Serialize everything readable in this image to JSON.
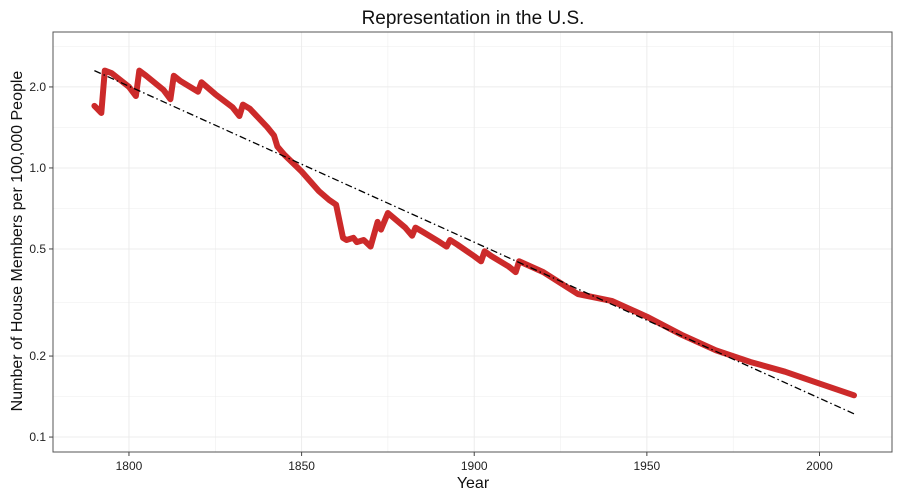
{
  "chart_data": {
    "type": "line",
    "title": "Representation in the U.S.",
    "xlabel": "Year",
    "ylabel": "Number of House Members per 100,000 People",
    "x_scale": "linear",
    "y_scale": "log10",
    "xlim": [
      1778,
      2021
    ],
    "ylim": [
      0.088,
      3.2
    ],
    "x_ticks": [
      1800,
      1850,
      1900,
      1950,
      2000
    ],
    "x_tick_labels": [
      "1800",
      "1850",
      "1900",
      "1950",
      "2000"
    ],
    "y_ticks": [
      0.1,
      0.2,
      0.5,
      1.0,
      2.0
    ],
    "y_tick_labels": [
      "0.1",
      "0.2",
      "0.5",
      "1.0",
      "2.0"
    ],
    "grid": true,
    "legend": "none",
    "colors": {
      "series": "#cc2a2a",
      "trend": "#000000",
      "panel_border": "#555555",
      "grid": "#ececec"
    },
    "series": [
      {
        "style": "solid-thick",
        "x": [
          1790,
          1791,
          1792,
          1793,
          1795,
          1800,
          1802,
          1803,
          1805,
          1810,
          1812,
          1813,
          1815,
          1820,
          1821,
          1825,
          1830,
          1832,
          1833,
          1835,
          1840,
          1842,
          1843,
          1845,
          1850,
          1855,
          1858,
          1860,
          1862,
          1863,
          1865,
          1866,
          1868,
          1870,
          1872,
          1873,
          1875,
          1880,
          1882,
          1883,
          1885,
          1890,
          1892,
          1893,
          1895,
          1900,
          1902,
          1903,
          1905,
          1910,
          1912,
          1913,
          1920,
          1930,
          1940,
          1950,
          1960,
          1970,
          1980,
          1990,
          2000,
          2010
        ],
        "y": [
          1.7,
          1.65,
          1.6,
          2.3,
          2.25,
          2.0,
          1.85,
          2.3,
          2.2,
          1.95,
          1.8,
          2.2,
          2.1,
          1.92,
          2.08,
          1.88,
          1.68,
          1.56,
          1.72,
          1.66,
          1.42,
          1.32,
          1.2,
          1.12,
          0.97,
          0.82,
          0.76,
          0.73,
          0.55,
          0.54,
          0.55,
          0.53,
          0.54,
          0.51,
          0.63,
          0.59,
          0.68,
          0.6,
          0.56,
          0.6,
          0.58,
          0.53,
          0.51,
          0.54,
          0.52,
          0.47,
          0.45,
          0.49,
          0.47,
          0.43,
          0.41,
          0.45,
          0.41,
          0.34,
          0.32,
          0.28,
          0.24,
          0.21,
          0.19,
          0.175,
          0.158,
          0.143
        ]
      },
      {
        "style": "dash-dot-trend",
        "x": [
          1790,
          2010
        ],
        "y": [
          2.3,
          0.122
        ]
      }
    ]
  }
}
